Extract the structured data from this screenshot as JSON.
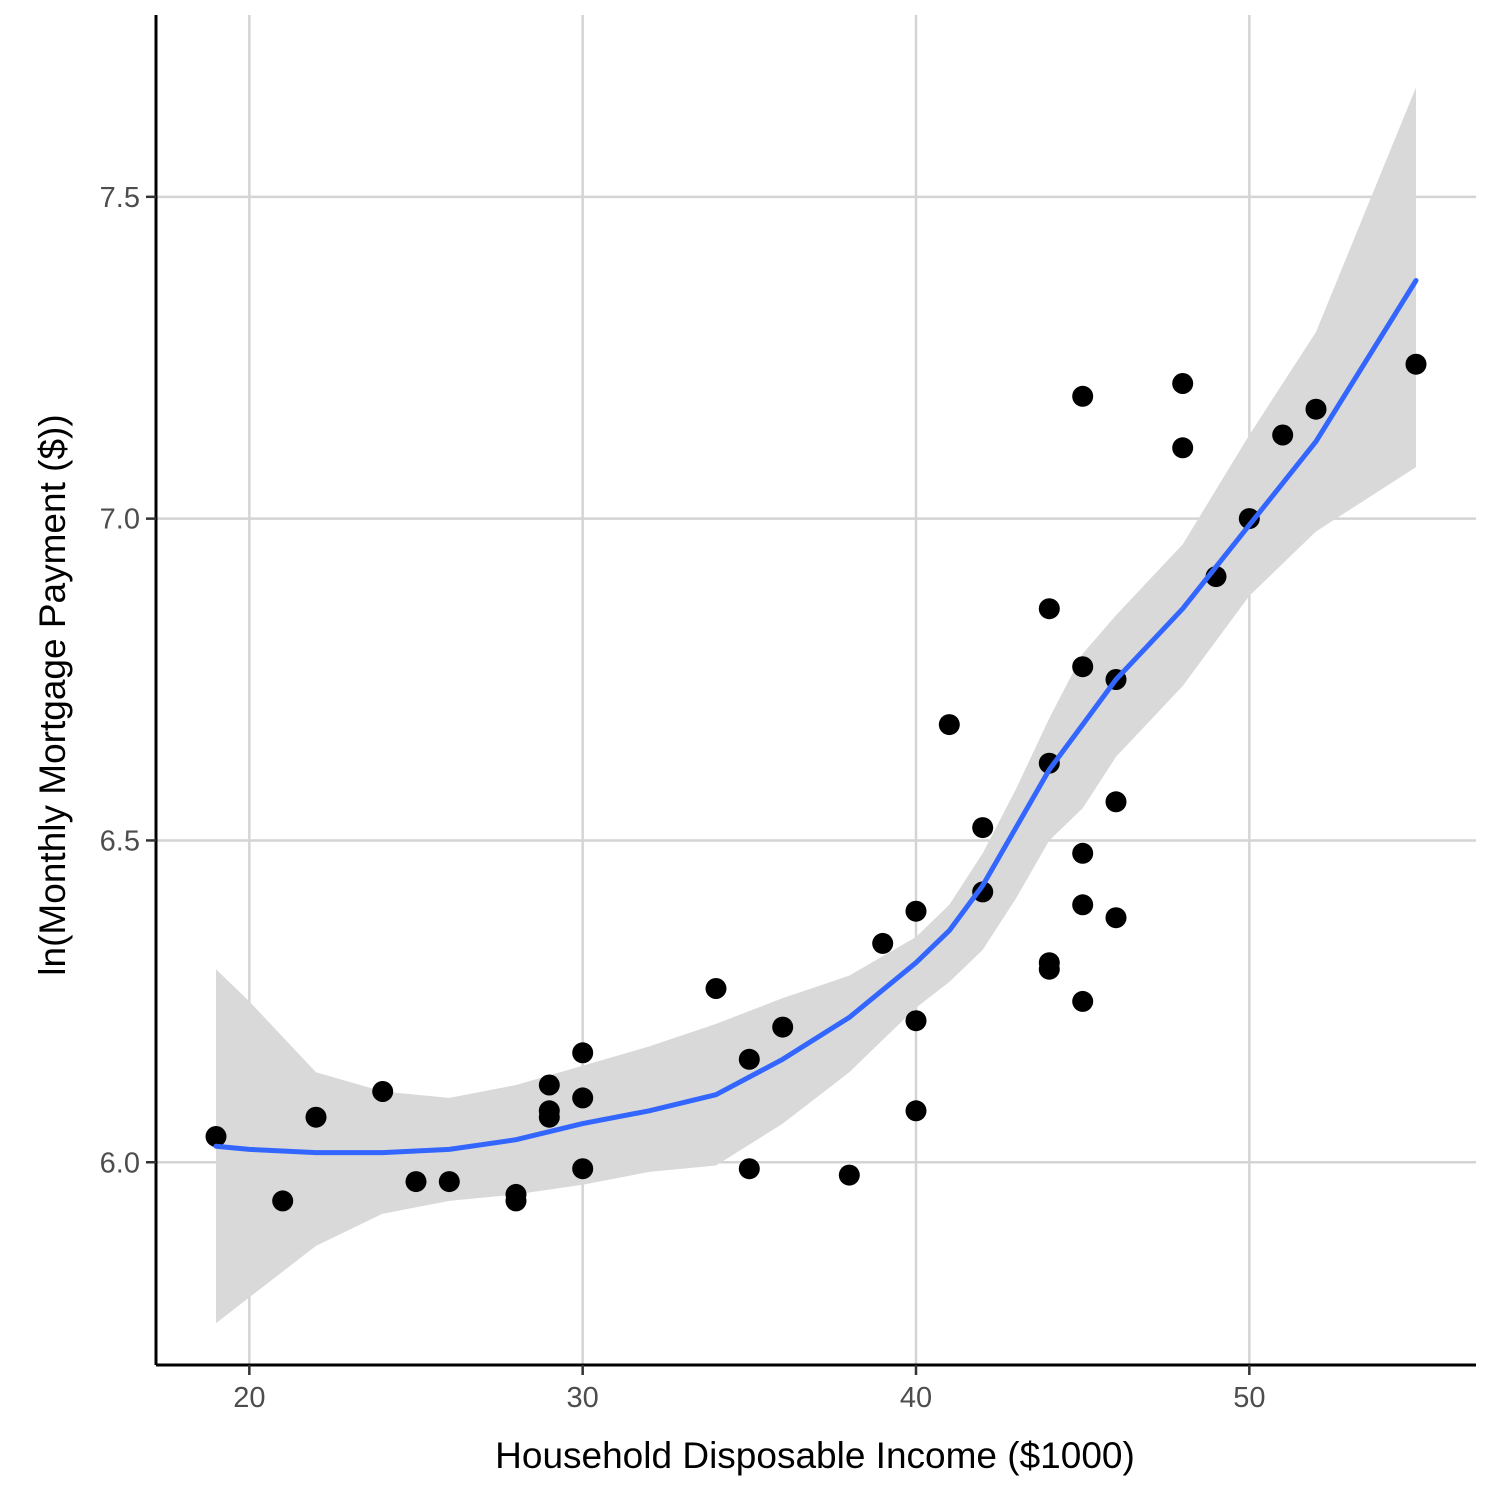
{
  "chart_data": {
    "type": "scatter",
    "title": "",
    "xlabel": "Household Disposable Income ($1000)",
    "ylabel": "ln(Monthly Mortgage Payment ($))",
    "xlim": [
      17.2,
      56.8
    ],
    "ylim": [
      5.685,
      7.7825
    ],
    "x_ticks": [
      20,
      30,
      40,
      50
    ],
    "y_ticks": [
      6.0,
      6.5,
      7.0,
      7.5
    ],
    "x_tick_labels": [
      "20",
      "30",
      "40",
      "50"
    ],
    "y_tick_labels": [
      "6.0",
      "6.5",
      "7.0",
      "7.5"
    ],
    "grid": true,
    "colors": {
      "points": "#000000",
      "smooth": "#3366ff",
      "ribbon": "#d9d9d9",
      "grid": "#d4d4d4",
      "axis": "#000000"
    },
    "points": [
      [
        19,
        6.04
      ],
      [
        21,
        5.94
      ],
      [
        22,
        6.07
      ],
      [
        24,
        6.11
      ],
      [
        25,
        5.97
      ],
      [
        26,
        5.97
      ],
      [
        28,
        5.95
      ],
      [
        28,
        5.94
      ],
      [
        29,
        6.12
      ],
      [
        29,
        6.08
      ],
      [
        29,
        6.07
      ],
      [
        30,
        6.17
      ],
      [
        30,
        6.1
      ],
      [
        30,
        5.99
      ],
      [
        34,
        6.27
      ],
      [
        35,
        6.16
      ],
      [
        35,
        5.99
      ],
      [
        36,
        6.21
      ],
      [
        38,
        5.98
      ],
      [
        39,
        6.34
      ],
      [
        40,
        6.39
      ],
      [
        40,
        6.22
      ],
      [
        40,
        6.08
      ],
      [
        41,
        6.68
      ],
      [
        42,
        6.52
      ],
      [
        42,
        6.42
      ],
      [
        44,
        6.86
      ],
      [
        44,
        6.62
      ],
      [
        44,
        6.31
      ],
      [
        44,
        6.3
      ],
      [
        45,
        7.19
      ],
      [
        45,
        6.77
      ],
      [
        45,
        6.48
      ],
      [
        45,
        6.4
      ],
      [
        45,
        6.25
      ],
      [
        46,
        6.75
      ],
      [
        46,
        6.56
      ],
      [
        46,
        6.38
      ],
      [
        48,
        7.21
      ],
      [
        48,
        7.11
      ],
      [
        49,
        6.91
      ],
      [
        50,
        7.0
      ],
      [
        51,
        7.13
      ],
      [
        52,
        7.17
      ],
      [
        55,
        7.24
      ]
    ],
    "smooth": {
      "method": "loess",
      "x": [
        19,
        20,
        22,
        24,
        26,
        28,
        30,
        32,
        34,
        36,
        38,
        40,
        41,
        42,
        43,
        44,
        45,
        46,
        48,
        50,
        52,
        55
      ],
      "y": [
        6.025,
        6.02,
        6.015,
        6.015,
        6.02,
        6.035,
        6.06,
        6.08,
        6.105,
        6.16,
        6.225,
        6.31,
        6.36,
        6.43,
        6.52,
        6.61,
        6.68,
        6.75,
        6.86,
        6.99,
        7.12,
        7.37
      ],
      "lower": [
        5.75,
        5.79,
        5.87,
        5.92,
        5.94,
        5.95,
        5.965,
        5.985,
        5.995,
        6.06,
        6.14,
        6.24,
        6.28,
        6.33,
        6.41,
        6.5,
        6.55,
        6.63,
        6.74,
        6.88,
        6.98,
        7.08
      ],
      "upper": [
        6.3,
        6.25,
        6.14,
        6.11,
        6.1,
        6.12,
        6.15,
        6.18,
        6.215,
        6.255,
        6.29,
        6.35,
        6.4,
        6.48,
        6.58,
        6.69,
        6.79,
        6.85,
        6.96,
        7.13,
        7.29,
        7.67
      ]
    }
  }
}
